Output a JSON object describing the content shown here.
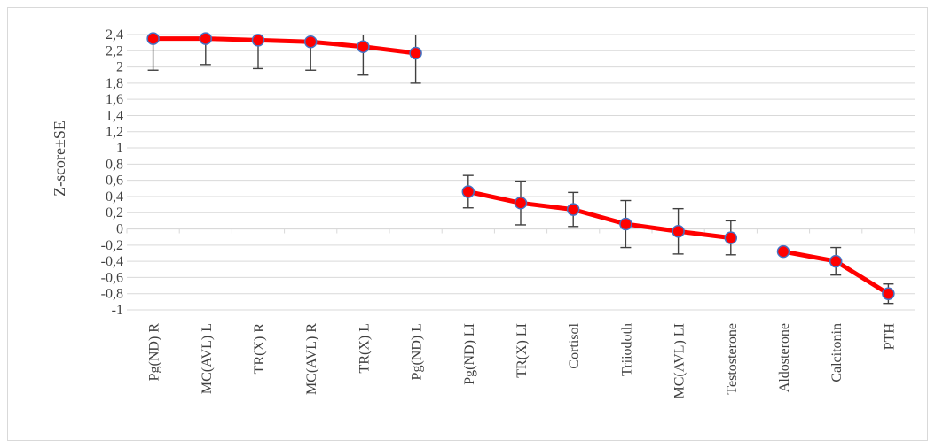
{
  "chart_data": {
    "type": "line",
    "ylabel": "Z-score±SE",
    "ylim": [
      -1,
      2.4
    ],
    "ytick_step": 0.2,
    "ytick_labels": [
      "-1",
      "-0,8",
      "-0,6",
      "-0,4",
      "-0,2",
      "0",
      "0,2",
      "0,4",
      "0,6",
      "0,8",
      "1",
      "1,2",
      "1,4",
      "1,6",
      "1,8",
      "2",
      "2,2",
      "2,4"
    ],
    "grid": true,
    "line_color": "#ff0000",
    "marker_fill": "#ff0000",
    "marker_stroke": "#4472c4",
    "errorbar_color": "#404040",
    "categories": [
      "Pg(ND) R",
      "MC(AVL) L",
      "TR(X) R",
      "MC(AVL) R",
      "TR(X) L",
      "Pg(ND) L",
      "Pg(ND) LI",
      "TR(X) LI",
      "Cortisol",
      "Triiodoth",
      "MC(AVL) LI",
      "Testosterone",
      "Aldosterone",
      "Calcitonin",
      "PTH"
    ],
    "groups": [
      {
        "start": 0,
        "end": 5
      },
      {
        "start": 6,
        "end": 11
      },
      {
        "start": 12,
        "end": 14
      }
    ],
    "values": [
      2.35,
      2.35,
      2.33,
      2.31,
      2.25,
      2.17,
      0.46,
      0.32,
      0.24,
      0.06,
      -0.03,
      -0.11,
      -0.28,
      -0.4,
      -0.8
    ],
    "error": [
      0.39,
      0.32,
      0.35,
      0.35,
      0.35,
      0.37,
      0.2,
      0.27,
      0.21,
      0.29,
      0.28,
      0.21,
      0.01,
      0.17,
      0.12
    ]
  }
}
